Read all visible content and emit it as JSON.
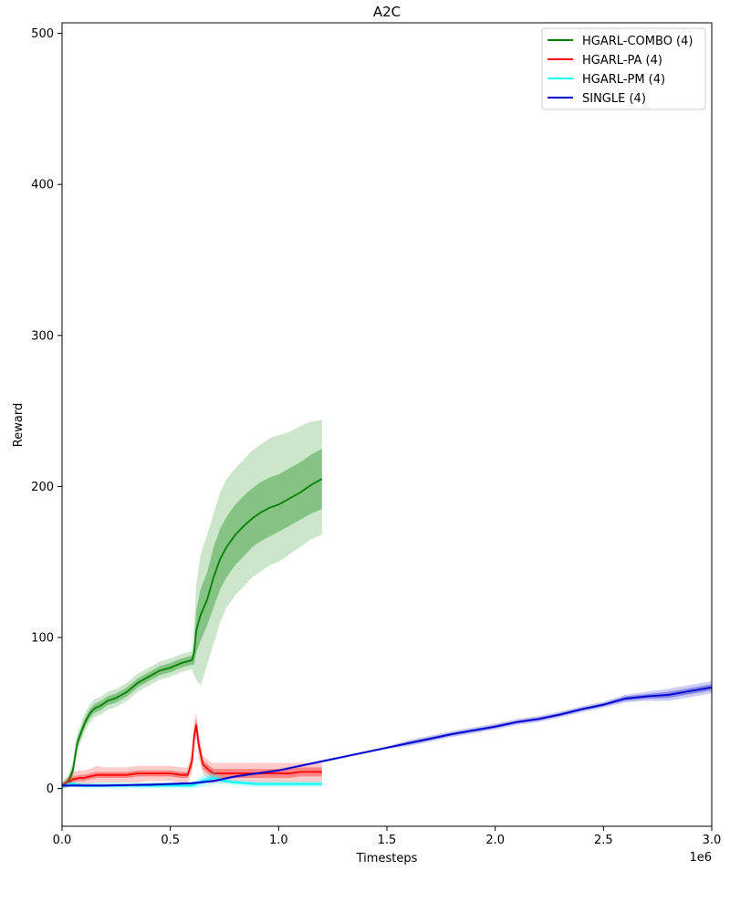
{
  "chart_data": {
    "type": "line",
    "title": "A2C",
    "xlabel": "Timesteps",
    "ylabel": "Reward",
    "x_offset_label": "1e6",
    "xlim": [
      0,
      3.0
    ],
    "ylim": [
      -25,
      507
    ],
    "xticks": [
      0.0,
      0.5,
      1.0,
      1.5,
      2.0,
      2.5,
      3.0
    ],
    "xtick_labels": [
      "0.0",
      "0.5",
      "1.0",
      "1.5",
      "2.0",
      "2.5",
      "3.0"
    ],
    "yticks": [
      0,
      100,
      200,
      300,
      400,
      500
    ],
    "ytick_labels": [
      "0",
      "100",
      "200",
      "300",
      "400",
      "500"
    ],
    "grid": false,
    "legend_position": "top-right",
    "series": [
      {
        "name": "HGARL-COMBO (4)",
        "color": "#008000",
        "x": [
          0.0,
          0.03,
          0.05,
          0.07,
          0.09,
          0.11,
          0.13,
          0.15,
          0.18,
          0.21,
          0.25,
          0.3,
          0.35,
          0.4,
          0.45,
          0.5,
          0.55,
          0.6,
          0.61,
          0.62,
          0.64,
          0.67,
          0.7,
          0.73,
          0.76,
          0.8,
          0.84,
          0.88,
          0.92,
          0.96,
          1.0,
          1.05,
          1.1,
          1.15,
          1.2
        ],
        "mean": [
          2,
          5,
          12,
          30,
          38,
          45,
          50,
          53,
          55,
          58,
          60,
          64,
          70,
          74,
          78,
          80,
          83,
          85,
          90,
          105,
          115,
          125,
          140,
          152,
          160,
          168,
          174,
          179,
          183,
          186,
          188,
          192,
          196,
          201,
          205
        ],
        "inner_low": [
          1,
          3,
          9,
          27,
          35,
          42,
          47,
          50,
          52,
          55,
          57,
          61,
          67,
          71,
          75,
          77,
          80,
          82,
          82,
          90,
          98,
          108,
          120,
          132,
          140,
          148,
          154,
          160,
          164,
          167,
          170,
          174,
          178,
          182,
          185
        ],
        "inner_high": [
          3,
          7,
          15,
          33,
          41,
          48,
          53,
          56,
          58,
          61,
          63,
          67,
          73,
          77,
          81,
          83,
          86,
          88,
          96,
          118,
          132,
          143,
          160,
          172,
          180,
          188,
          194,
          199,
          203,
          206,
          208,
          212,
          216,
          221,
          225
        ],
        "outer_low": [
          0,
          1,
          6,
          24,
          32,
          39,
          44,
          47,
          49,
          52,
          54,
          58,
          64,
          68,
          72,
          74,
          77,
          79,
          75,
          72,
          68,
          82,
          96,
          110,
          120,
          128,
          134,
          140,
          144,
          148,
          150,
          155,
          160,
          165,
          168
        ],
        "outer_high": [
          4,
          9,
          18,
          36,
          44,
          51,
          56,
          59,
          61,
          64,
          66,
          70,
          76,
          80,
          84,
          86,
          89,
          91,
          108,
          135,
          155,
          168,
          182,
          196,
          205,
          212,
          218,
          224,
          228,
          232,
          234,
          236,
          240,
          243,
          244
        ]
      },
      {
        "name": "HGARL-PA (4)",
        "color": "#ff0000",
        "x": [
          0.0,
          0.03,
          0.05,
          0.08,
          0.1,
          0.13,
          0.16,
          0.19,
          0.22,
          0.26,
          0.3,
          0.35,
          0.4,
          0.45,
          0.5,
          0.55,
          0.58,
          0.6,
          0.61,
          0.62,
          0.63,
          0.65,
          0.68,
          0.7,
          0.75,
          0.8,
          0.85,
          0.9,
          0.95,
          1.0,
          1.05,
          1.1,
          1.15,
          1.2
        ],
        "mean": [
          2,
          4,
          6,
          7,
          7,
          8,
          9,
          9,
          9,
          9,
          9,
          10,
          10,
          10,
          10,
          9,
          9,
          18,
          35,
          42,
          30,
          16,
          12,
          10,
          10,
          10,
          10,
          10,
          10,
          10,
          10,
          11,
          11,
          11
        ],
        "inner_low": [
          1,
          3,
          4,
          5,
          5,
          6,
          7,
          7,
          7,
          7,
          7,
          8,
          8,
          8,
          8,
          7,
          7,
          14,
          30,
          38,
          26,
          13,
          9,
          7,
          7,
          7,
          7,
          7,
          7,
          7,
          7,
          8,
          8,
          8
        ],
        "inner_high": [
          3,
          6,
          8,
          9,
          9,
          10,
          11,
          11,
          11,
          11,
          11,
          12,
          12,
          12,
          12,
          11,
          11,
          22,
          40,
          46,
          34,
          19,
          15,
          13,
          13,
          13,
          13,
          13,
          13,
          13,
          13,
          14,
          14,
          14
        ],
        "outer_low": [
          0,
          1,
          2,
          2,
          3,
          3,
          4,
          4,
          4,
          4,
          4,
          4,
          5,
          5,
          5,
          4,
          4,
          10,
          26,
          34,
          22,
          10,
          6,
          4,
          4,
          4,
          4,
          4,
          4,
          4,
          4,
          4,
          4,
          4
        ],
        "outer_high": [
          4,
          8,
          11,
          12,
          12,
          13,
          15,
          14,
          14,
          14,
          14,
          15,
          15,
          15,
          15,
          14,
          14,
          26,
          44,
          50,
          38,
          22,
          18,
          17,
          17,
          17,
          17,
          17,
          17,
          17,
          17,
          17,
          17,
          17
        ]
      },
      {
        "name": "HGARL-PM (4)",
        "color": "#00ffff",
        "x": [
          0.0,
          0.03,
          0.05,
          0.1,
          0.2,
          0.3,
          0.4,
          0.5,
          0.6,
          0.65,
          0.7,
          0.75,
          0.8,
          0.9,
          1.0,
          1.1,
          1.2
        ],
        "mean": [
          1,
          3,
          3,
          2,
          2,
          2,
          2,
          2,
          2,
          5,
          7,
          5,
          4,
          3,
          3,
          3,
          3
        ],
        "inner_low": [
          0,
          2,
          2,
          1,
          1,
          1,
          1,
          1,
          1,
          3,
          5,
          4,
          3,
          2,
          2,
          2,
          2
        ],
        "inner_high": [
          2,
          4,
          4,
          3,
          3,
          3,
          3,
          3,
          3,
          7,
          9,
          6,
          5,
          4,
          4,
          4,
          4
        ],
        "outer_low": [
          0,
          1,
          1,
          0,
          0,
          0,
          0,
          0,
          0,
          1,
          3,
          3,
          2,
          1,
          1,
          1,
          1
        ],
        "outer_high": [
          3,
          5,
          5,
          4,
          4,
          4,
          4,
          4,
          4,
          9,
          11,
          7,
          6,
          5,
          5,
          5,
          5
        ]
      },
      {
        "name": "SINGLE (4)",
        "color": "#0000cd",
        "x": [
          0.0,
          0.2,
          0.4,
          0.6,
          0.7,
          0.8,
          0.9,
          1.0,
          1.1,
          1.2,
          1.3,
          1.4,
          1.5,
          1.6,
          1.7,
          1.8,
          1.9,
          2.0,
          2.1,
          2.2,
          2.3,
          2.4,
          2.5,
          2.6,
          2.7,
          2.8,
          2.9,
          3.0
        ],
        "mean": [
          2,
          2,
          2.5,
          3.5,
          5,
          8,
          10,
          12,
          15,
          18,
          21,
          24,
          27,
          30,
          33,
          36,
          38.5,
          41,
          44,
          46,
          49,
          52.5,
          55.5,
          59.5,
          61,
          62,
          64.5,
          67
        ],
        "inner_low": [
          1.5,
          1.5,
          2,
          3,
          4.5,
          7.5,
          9.5,
          11.5,
          14.5,
          17.5,
          20.5,
          23.5,
          26.5,
          29,
          32,
          35,
          37.5,
          40,
          43,
          45,
          48,
          51.5,
          54.5,
          58,
          59.5,
          60,
          62.5,
          65
        ],
        "inner_high": [
          2.5,
          2.5,
          3,
          4,
          5.5,
          8.5,
          10.5,
          12.5,
          15.5,
          18.5,
          21.5,
          24.5,
          27.5,
          31,
          34,
          37,
          39.5,
          42,
          45,
          47,
          50,
          53.5,
          56.5,
          61,
          62.5,
          64,
          66.5,
          69
        ],
        "outer_low": [
          1,
          1,
          1.5,
          2.5,
          4,
          7,
          9,
          11,
          14,
          17,
          20,
          23,
          26,
          28,
          31,
          34,
          36.5,
          39,
          42,
          44,
          47,
          50.5,
          53.5,
          57,
          58,
          58,
          60.5,
          63
        ],
        "outer_high": [
          3,
          3,
          3.5,
          4.5,
          6,
          9,
          11,
          13,
          16,
          19,
          22,
          25,
          28,
          32,
          35,
          38,
          40.5,
          43,
          46,
          48,
          51,
          54.5,
          57.5,
          62,
          64,
          66,
          68.5,
          71
        ]
      }
    ]
  }
}
